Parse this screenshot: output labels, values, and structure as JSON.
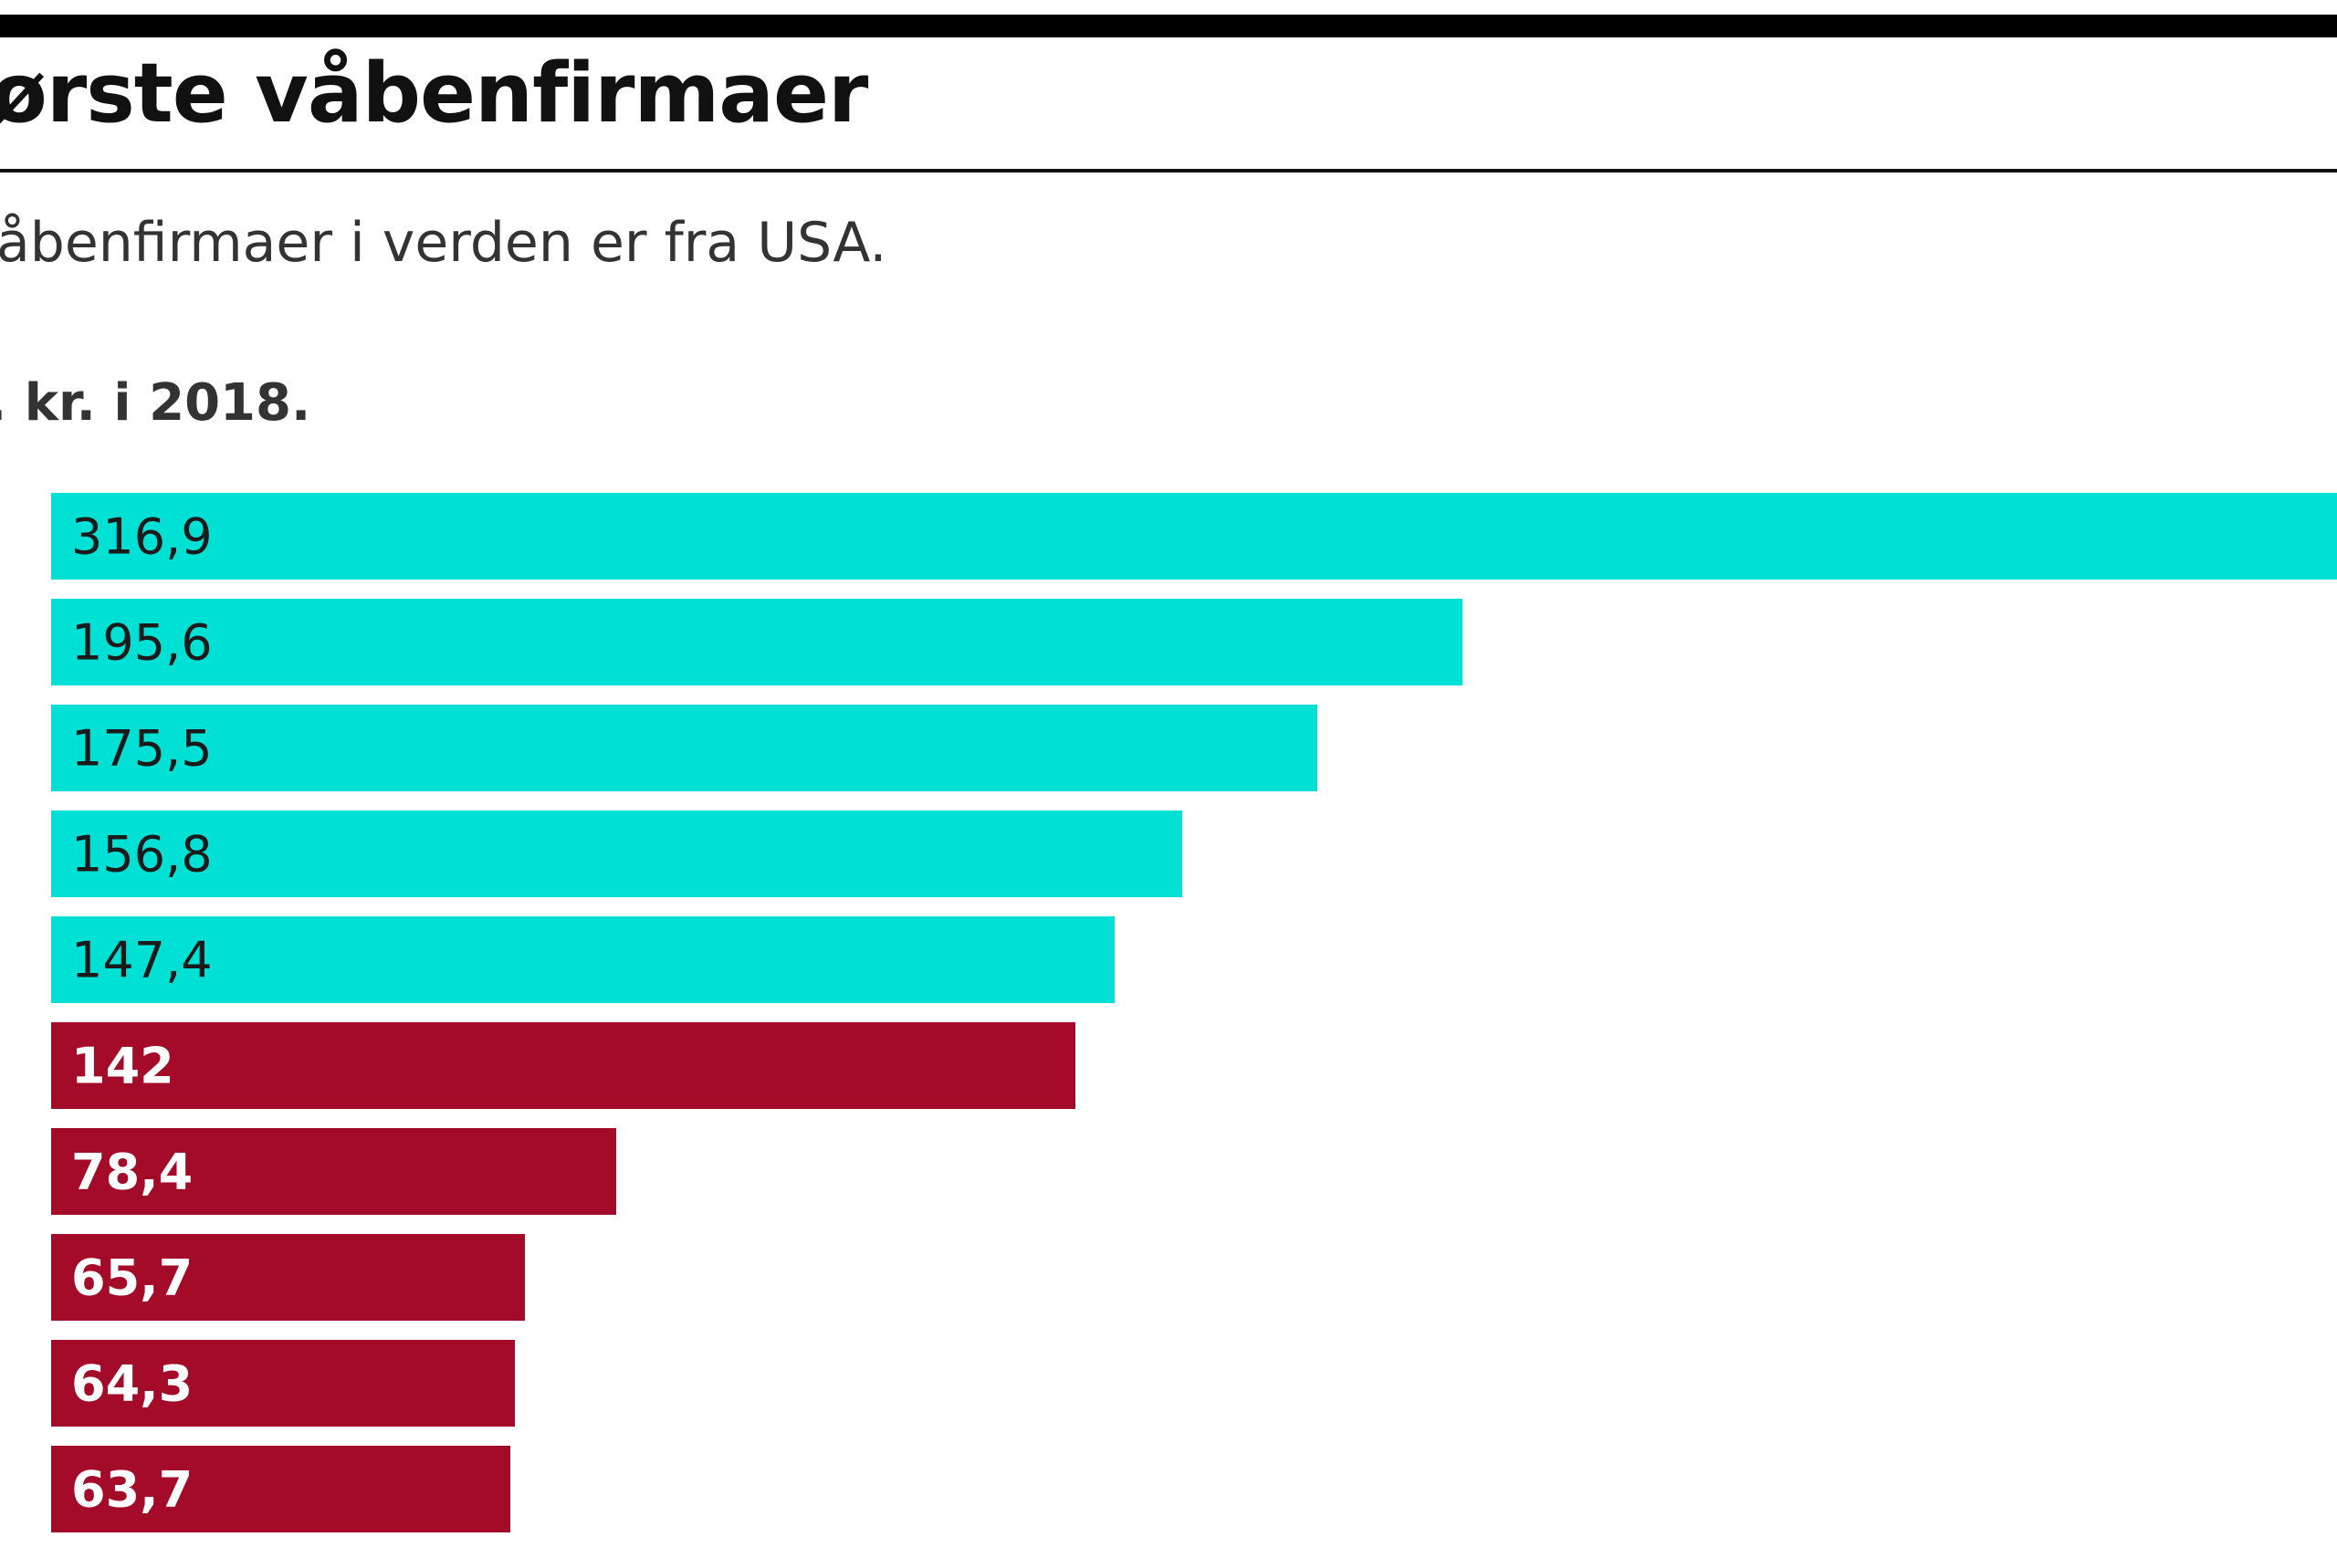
{
  "header": {
    "title": "ørste våbenfirmaer",
    "subtitle": "åbenfirmaer i verden er fra USA.",
    "unit_label": ". kr. i 2018."
  },
  "colors": {
    "usa": "#00E0D5",
    "other": "#A30B28",
    "label_on_usa": "#1a1a1a",
    "label_on_other": "#ffffff"
  },
  "chart_data": {
    "type": "bar",
    "orientation": "horizontal",
    "title": "ørste våbenfirmaer",
    "subtitle": "åbenfirmaer i verden er fra USA.",
    "xlabel": ". kr. i 2018.",
    "ylabel": "",
    "xlim": [
      0,
      316.9
    ],
    "grid": false,
    "legend": "none",
    "categories": [
      "",
      "",
      "",
      "",
      "",
      "",
      "",
      "",
      "",
      ""
    ],
    "values": [
      316.9,
      195.6,
      175.5,
      156.8,
      147.4,
      142,
      78.4,
      65.7,
      64.3,
      63.7
    ],
    "value_labels": [
      "316,9",
      "195,6",
      "175,5",
      "156,8",
      "147,4",
      "142",
      "78,4",
      "65,7",
      "64,3",
      "63,7"
    ],
    "groups": [
      "usa",
      "usa",
      "usa",
      "usa",
      "usa",
      "other",
      "other",
      "other",
      "other",
      "other"
    ]
  }
}
